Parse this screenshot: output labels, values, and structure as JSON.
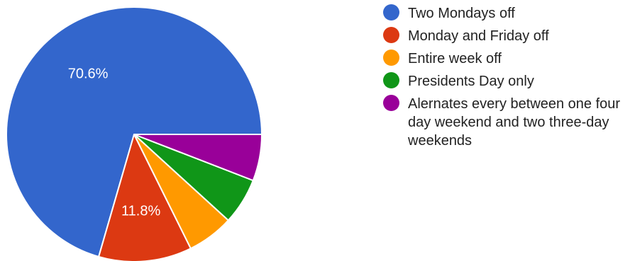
{
  "chart_data": {
    "type": "pie",
    "slices": [
      {
        "label": "Two Mondays off",
        "value": 70.6,
        "color": "#3366cc",
        "data_label": "70.6%"
      },
      {
        "label": "Monday and Friday off",
        "value": 11.8,
        "color": "#dc3912",
        "data_label": "11.8%"
      },
      {
        "label": "Entire week off",
        "value": 5.9,
        "color": "#ff9900",
        "data_label": ""
      },
      {
        "label": "Presidents Day only",
        "value": 5.9,
        "color": "#109618",
        "data_label": ""
      },
      {
        "label": "Alernates every between one four day weekend and two three-day weekends",
        "value": 5.9,
        "color": "#990099",
        "data_label": ""
      }
    ],
    "legend_position": "right",
    "start_angle_deg": 0,
    "direction": "counterclockwise"
  }
}
